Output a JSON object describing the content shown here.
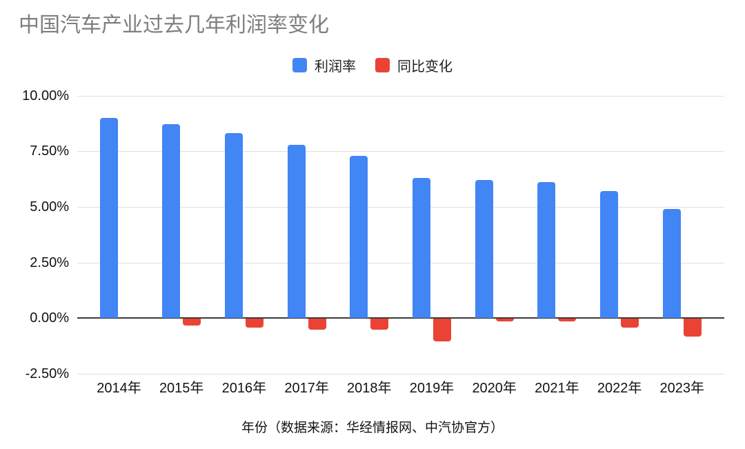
{
  "chart": {
    "title": "中国汽车产业过去几年利润率变化",
    "x_axis_title": "年份（数据来源：华经情报网、中汽协官方）"
  },
  "chart_data": {
    "type": "bar",
    "title": "中国汽车产业过去几年利润率变化",
    "xlabel": "年份（数据来源：华经情报网、中汽协官方）",
    "ylabel": "",
    "categories": [
      "2014年",
      "2015年",
      "2016年",
      "2017年",
      "2018年",
      "2019年",
      "2020年",
      "2021年",
      "2022年",
      "2023年"
    ],
    "series": [
      {
        "name": "利润率",
        "color": "#4285F4",
        "values": [
          8.99,
          8.7,
          8.3,
          7.8,
          7.3,
          6.3,
          6.2,
          6.1,
          5.7,
          4.9
        ]
      },
      {
        "name": "同比变化",
        "color": "#EA4335",
        "values": [
          null,
          -0.29,
          -0.4,
          -0.5,
          -0.5,
          -1.0,
          -0.1,
          -0.1,
          -0.4,
          -0.8
        ]
      }
    ],
    "unit": "%",
    "ylim": [
      -2.5,
      10
    ],
    "y_ticks": [
      {
        "value": 10,
        "label": "10.00%"
      },
      {
        "value": 7.5,
        "label": "7.50%"
      },
      {
        "value": 5,
        "label": "5.00%"
      },
      {
        "value": 2.5,
        "label": "2.50%"
      },
      {
        "value": 0,
        "label": "0.00%"
      },
      {
        "value": -2.5,
        "label": "-2.50%"
      }
    ],
    "grid": true,
    "legend_position": "top"
  }
}
